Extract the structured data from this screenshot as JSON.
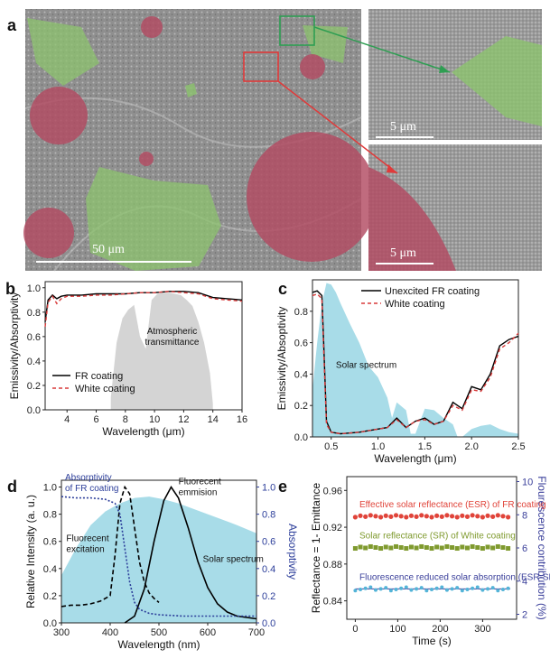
{
  "panel_a": {
    "label": "a",
    "scale_main": "50 μm",
    "scale_inset_top": "5 μm",
    "scale_inset_bottom": "5 μm",
    "colors": {
      "red_particle": "#b24b62",
      "green_particle": "#8cc36e",
      "box_green": "#2e9e52",
      "box_red": "#e03a3a"
    }
  },
  "chart_data": [
    {
      "id": "b",
      "type": "line",
      "label": "b",
      "xlabel": "Wavelength (μm)",
      "ylabel": "Emissivity/Absorptivity",
      "xlim": [
        2.5,
        16
      ],
      "ylim": [
        0,
        1.05
      ],
      "xticks": [
        "4",
        "6",
        "8",
        "10",
        "12",
        "14",
        "16"
      ],
      "yticks": [
        "0.0",
        "0.2",
        "0.4",
        "0.6",
        "0.8",
        "1.0"
      ],
      "annotation": "Atmospheric transmittance",
      "legend_placement": "bottom-left",
      "series": [
        {
          "name": "FR coating",
          "color": "#000000",
          "dash": "none",
          "x": [
            2.5,
            2.7,
            3.0,
            3.3,
            3.6,
            4,
            5,
            6,
            7,
            8,
            9,
            10,
            11,
            12,
            13,
            14,
            15,
            16
          ],
          "y": [
            0.72,
            0.9,
            0.94,
            0.91,
            0.93,
            0.94,
            0.94,
            0.95,
            0.95,
            0.95,
            0.96,
            0.96,
            0.97,
            0.97,
            0.96,
            0.92,
            0.91,
            0.9
          ]
        },
        {
          "name": "White coating",
          "color": "#d83a3a",
          "dash": "4,3",
          "x": [
            2.5,
            2.7,
            3.0,
            3.3,
            3.6,
            4,
            5,
            6,
            7,
            8,
            9,
            10,
            11,
            12,
            13,
            14,
            15,
            16
          ],
          "y": [
            0.68,
            0.88,
            0.93,
            0.87,
            0.91,
            0.93,
            0.93,
            0.94,
            0.94,
            0.95,
            0.96,
            0.96,
            0.97,
            0.96,
            0.95,
            0.91,
            0.9,
            0.89
          ]
        }
      ],
      "area": {
        "name": "atmospheric",
        "color": "#cccccc",
        "x": [
          7.0,
          7.4,
          7.8,
          8.2,
          8.6,
          9.0,
          9.4,
          9.8,
          10.2,
          10.6,
          11.0,
          11.4,
          11.8,
          12.2,
          12.6,
          13.0,
          13.4,
          13.8,
          14.0
        ],
        "y": [
          0.1,
          0.55,
          0.75,
          0.82,
          0.86,
          0.6,
          0.5,
          0.9,
          0.95,
          0.96,
          0.96,
          0.95,
          0.94,
          0.9,
          0.85,
          0.72,
          0.55,
          0.3,
          0.05
        ]
      }
    },
    {
      "id": "c",
      "type": "line",
      "label": "c",
      "xlabel": "Wavelength (μm)",
      "ylabel": "Emissivity/Absoptivity",
      "xlim": [
        0.3,
        2.5
      ],
      "ylim": [
        0,
        1.0
      ],
      "xticks": [
        "0.5",
        "1.0",
        "1.5",
        "2.0",
        "2.5"
      ],
      "yticks": [
        "0.0",
        "0.2",
        "0.4",
        "0.6",
        "0.8"
      ],
      "annotation": "Solar spectrum",
      "legend_placement": "top-right",
      "series": [
        {
          "name": "Unexcited FR coating",
          "color": "#000000",
          "dash": "none",
          "x": [
            0.3,
            0.35,
            0.4,
            0.42,
            0.45,
            0.5,
            0.6,
            0.8,
            1.0,
            1.1,
            1.2,
            1.3,
            1.4,
            1.5,
            1.6,
            1.7,
            1.8,
            1.9,
            2.0,
            2.1,
            2.2,
            2.3,
            2.4,
            2.5
          ],
          "y": [
            0.92,
            0.93,
            0.9,
            0.6,
            0.1,
            0.03,
            0.02,
            0.03,
            0.05,
            0.06,
            0.12,
            0.06,
            0.1,
            0.12,
            0.08,
            0.1,
            0.22,
            0.18,
            0.32,
            0.3,
            0.4,
            0.58,
            0.62,
            0.64
          ]
        },
        {
          "name": "White coating",
          "color": "#d83a3a",
          "dash": "4,3",
          "x": [
            0.3,
            0.35,
            0.4,
            0.42,
            0.45,
            0.5,
            0.6,
            0.8,
            1.0,
            1.1,
            1.2,
            1.3,
            1.4,
            1.5,
            1.6,
            1.7,
            1.8,
            1.9,
            2.0,
            2.1,
            2.2,
            2.3,
            2.4,
            2.5
          ],
          "y": [
            0.9,
            0.91,
            0.88,
            0.55,
            0.08,
            0.03,
            0.02,
            0.03,
            0.05,
            0.06,
            0.11,
            0.06,
            0.1,
            0.11,
            0.08,
            0.1,
            0.2,
            0.17,
            0.3,
            0.29,
            0.38,
            0.56,
            0.6,
            0.66
          ]
        }
      ],
      "area": {
        "name": "solar",
        "color": "#a8dce8",
        "x": [
          0.3,
          0.35,
          0.4,
          0.45,
          0.5,
          0.55,
          0.6,
          0.7,
          0.8,
          0.9,
          1.0,
          1.1,
          1.15,
          1.2,
          1.3,
          1.35,
          1.4,
          1.5,
          1.6,
          1.7,
          1.8,
          1.85,
          1.9,
          2.0,
          2.1,
          2.2,
          2.3,
          2.4,
          2.5
        ],
        "y": [
          0.3,
          0.6,
          0.85,
          0.98,
          0.97,
          0.92,
          0.85,
          0.72,
          0.6,
          0.45,
          0.38,
          0.25,
          0.12,
          0.22,
          0.17,
          0.02,
          0.02,
          0.18,
          0.17,
          0.12,
          0.08,
          0.0,
          0.0,
          0.05,
          0.07,
          0.08,
          0.05,
          0.03,
          0.02
        ]
      }
    },
    {
      "id": "d",
      "type": "line",
      "label": "d",
      "xlabel": "Wavelength (nm)",
      "ylabel": "Relative Intensity (a. u.)",
      "ylabel2": "Absorptivity",
      "xlim": [
        300,
        700
      ],
      "ylim": [
        0,
        1.05
      ],
      "xticks": [
        "300",
        "400",
        "500",
        "600",
        "700"
      ],
      "yticks": [
        "0.0",
        "0.2",
        "0.4",
        "0.6",
        "0.8",
        "1.0"
      ],
      "y2ticks": [
        "0.0",
        "0.2",
        "0.4",
        "0.6",
        "0.8",
        "1.0"
      ],
      "annotations": {
        "absorptivity": "Absorptivity",
        "absorptivity2": "of FR coating",
        "excitation1": "Fluorecent",
        "excitation2": "excitation",
        "emission1": "Fluorecent",
        "emission2": "emmision",
        "solar": "Solar spectrum"
      },
      "series": [
        {
          "name": "Fluorecent excitation",
          "color": "#000000",
          "dash": "5,3",
          "x": [
            300,
            320,
            340,
            360,
            380,
            400,
            410,
            420,
            430,
            440,
            450,
            460,
            470,
            480,
            490,
            500
          ],
          "y": [
            0.12,
            0.13,
            0.13,
            0.14,
            0.16,
            0.2,
            0.5,
            0.88,
            1.0,
            0.95,
            0.7,
            0.45,
            0.3,
            0.22,
            0.18,
            0.15
          ]
        },
        {
          "name": "Fluorecent emmision",
          "color": "#000000",
          "dash": "none",
          "x": [
            430,
            450,
            470,
            490,
            510,
            525,
            540,
            560,
            580,
            600,
            620,
            640,
            660,
            680,
            700
          ],
          "y": [
            0.0,
            0.05,
            0.25,
            0.6,
            0.9,
            1.0,
            0.92,
            0.7,
            0.45,
            0.26,
            0.14,
            0.08,
            0.05,
            0.04,
            0.03
          ]
        },
        {
          "name": "Absorptivity of FR coating",
          "color": "#2c3e9a",
          "dash": "2,2",
          "x": [
            300,
            330,
            360,
            390,
            410,
            420,
            430,
            440,
            450,
            460,
            480,
            500,
            550,
            600,
            650,
            700
          ],
          "y": [
            0.93,
            0.92,
            0.92,
            0.91,
            0.88,
            0.8,
            0.55,
            0.3,
            0.15,
            0.1,
            0.07,
            0.06,
            0.05,
            0.05,
            0.05,
            0.05
          ]
        }
      ],
      "area": {
        "name": "solar",
        "color": "#a8dce8",
        "x": [
          300,
          330,
          360,
          390,
          420,
          450,
          480,
          510,
          540,
          570,
          600,
          630,
          660,
          700
        ],
        "y": [
          0.35,
          0.55,
          0.72,
          0.82,
          0.88,
          0.92,
          0.93,
          0.91,
          0.88,
          0.84,
          0.8,
          0.76,
          0.72,
          0.66
        ]
      }
    },
    {
      "id": "e",
      "type": "scatter",
      "label": "e",
      "xlabel": "Time (s)",
      "ylabel": "Reflectance = 1- Emittance",
      "ylabel2": "Flourescence contribution (%)",
      "xlim": [
        -20,
        380
      ],
      "ylim": [
        0.82,
        0.975
      ],
      "xticks": [
        "0",
        "100",
        "200",
        "300"
      ],
      "yticks": [
        "0.84",
        "0.88",
        "0.92",
        "0.96"
      ],
      "y2ticks": [
        "2",
        "4",
        "6",
        "8",
        "10"
      ],
      "series": [
        {
          "name": "Effective solar reflectance (ESR) of FR coating",
          "color": "#e0443a",
          "marker": "circle",
          "y": 0.932
        },
        {
          "name": "Solar reflectance (SR) of White coating",
          "color": "#7f9a2e",
          "marker": "square",
          "y": 0.898
        },
        {
          "name": "Fluorescence reduced solar absorption (ESR-SR)",
          "color": "#54b4d8",
          "marker": "circle",
          "y": 0.853
        }
      ],
      "legend_colors": [
        "#e0443a",
        "#7f9a2e",
        "#3a3f9a"
      ]
    }
  ]
}
